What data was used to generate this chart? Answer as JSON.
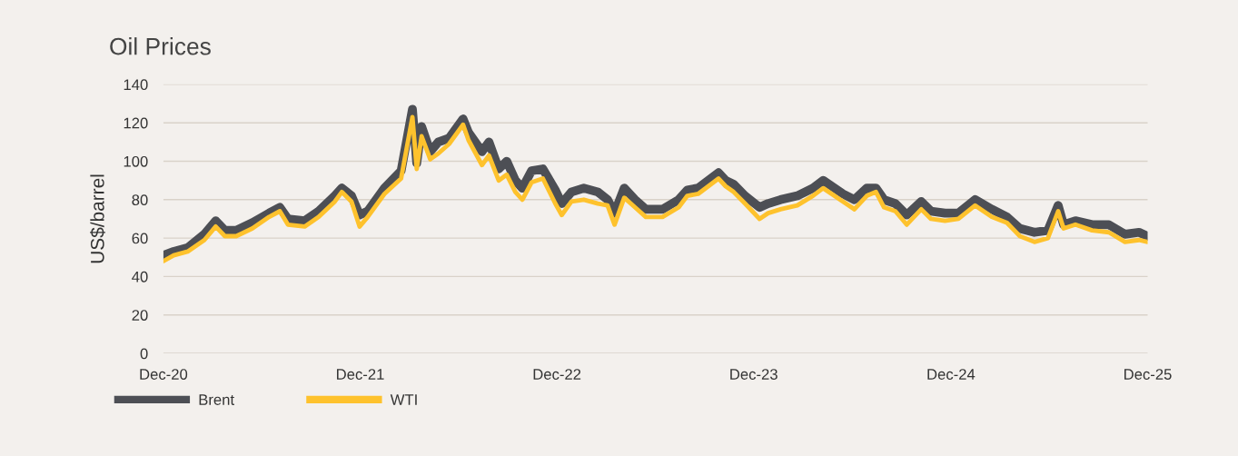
{
  "chart_data": {
    "type": "line",
    "title": "Oil Prices",
    "ylabel": "US$/barrel",
    "x": [
      "2020-12-01",
      "2020-12-20",
      "2021-01-15",
      "2021-02-15",
      "2021-03-08",
      "2021-03-25",
      "2021-04-15",
      "2021-05-15",
      "2021-06-15",
      "2021-07-05",
      "2021-07-20",
      "2021-08-20",
      "2021-09-15",
      "2021-10-15",
      "2021-10-28",
      "2021-11-15",
      "2021-11-30",
      "2021-12-15",
      "2022-01-15",
      "2022-02-15",
      "2022-03-08",
      "2022-03-16",
      "2022-03-25",
      "2022-04-10",
      "2022-04-25",
      "2022-05-15",
      "2022-06-10",
      "2022-06-20",
      "2022-07-15",
      "2022-07-28",
      "2022-08-15",
      "2022-08-30",
      "2022-09-15",
      "2022-09-28",
      "2022-10-15",
      "2022-11-05",
      "2022-11-28",
      "2022-12-10",
      "2022-12-28",
      "2023-01-20",
      "2023-02-15",
      "2023-03-05",
      "2023-03-18",
      "2023-04-05",
      "2023-04-25",
      "2023-05-15",
      "2023-06-15",
      "2023-07-15",
      "2023-07-31",
      "2023-08-20",
      "2023-09-27",
      "2023-10-10",
      "2023-10-25",
      "2023-11-15",
      "2023-12-12",
      "2023-12-28",
      "2024-01-20",
      "2024-02-20",
      "2024-03-20",
      "2024-04-08",
      "2024-05-15",
      "2024-06-05",
      "2024-06-28",
      "2024-07-15",
      "2024-07-30",
      "2024-08-20",
      "2024-09-10",
      "2024-10-07",
      "2024-10-25",
      "2024-11-20",
      "2024-12-15",
      "2025-01-15",
      "2025-02-15",
      "2025-03-15",
      "2025-04-08",
      "2025-05-05",
      "2025-05-30",
      "2025-06-18",
      "2025-06-28",
      "2025-07-20",
      "2025-08-20",
      "2025-09-20",
      "2025-10-20",
      "2025-11-15",
      "2025-12-01"
    ],
    "series": [
      {
        "name": "Brent",
        "color": "#4d4f55",
        "values": [
          51,
          53,
          55,
          62,
          69,
          64,
          64,
          68,
          73,
          76,
          70,
          69,
          74,
          82,
          86,
          82,
          72,
          74,
          86,
          95,
          127,
          99,
          118,
          105,
          110,
          112,
          122,
          115,
          105,
          110,
          96,
          100,
          90,
          86,
          95,
          96,
          85,
          78,
          84,
          86,
          84,
          80,
          73,
          86,
          80,
          75,
          75,
          80,
          85,
          86,
          94,
          90,
          88,
          82,
          76,
          78,
          80,
          82,
          86,
          90,
          83,
          80,
          86,
          86,
          80,
          78,
          72,
          79,
          74,
          73,
          73,
          80,
          75,
          71,
          65,
          63,
          64,
          77,
          67,
          69,
          67,
          67,
          62,
          63,
          61
        ]
      },
      {
        "name": "WTI",
        "color": "#fec22d",
        "values": [
          48,
          51,
          53,
          59,
          66,
          61,
          61,
          65,
          71,
          74,
          67,
          66,
          71,
          79,
          84,
          79,
          66,
          71,
          83,
          91,
          123,
          96,
          113,
          101,
          104,
          109,
          119,
          111,
          98,
          103,
          90,
          93,
          84,
          80,
          89,
          91,
          78,
          72,
          79,
          80,
          78,
          77,
          67,
          81,
          76,
          71,
          71,
          76,
          82,
          83,
          91,
          87,
          84,
          78,
          70,
          73,
          75,
          77,
          82,
          86,
          79,
          75,
          82,
          84,
          76,
          74,
          67,
          75,
          70,
          69,
          70,
          77,
          71,
          68,
          61,
          58,
          60,
          74,
          65,
          67,
          64,
          63,
          58,
          59,
          58
        ]
      }
    ],
    "ylim": [
      0,
      140
    ],
    "yticks": [
      0,
      20,
      40,
      60,
      80,
      100,
      120,
      140
    ],
    "xlim": [
      "2020-12-01",
      "2025-12-01"
    ],
    "xticks": [
      {
        "value": "2020-12-01",
        "label": "Dec-20"
      },
      {
        "value": "2021-12-01",
        "label": "Dec-21"
      },
      {
        "value": "2022-12-01",
        "label": "Dec-22"
      },
      {
        "value": "2023-12-01",
        "label": "Dec-23"
      },
      {
        "value": "2024-12-01",
        "label": "Dec-24"
      },
      {
        "value": "2025-12-01",
        "label": "Dec-25"
      }
    ],
    "grid": "y",
    "legend": "bottom left",
    "marker": "none",
    "line_style": "solid"
  }
}
